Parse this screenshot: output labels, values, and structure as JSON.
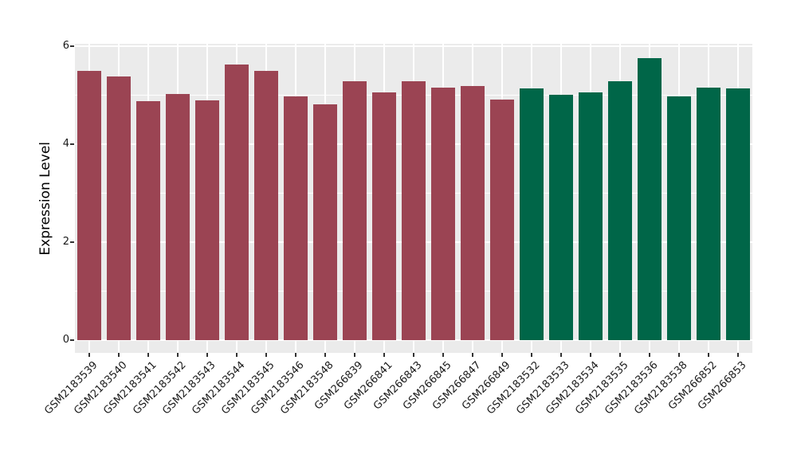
{
  "chart_data": {
    "type": "bar",
    "title": "",
    "xlabel": "",
    "ylabel": "Expression Level",
    "ylim": [
      0,
      6
    ],
    "yticks_major": [
      0,
      2,
      4,
      6
    ],
    "yticks_minor": [
      1,
      3,
      5
    ],
    "grid": "white-on-gray",
    "legend": "none",
    "panel_bg": "#EBEBEB",
    "grid_color": "#FFFFFF",
    "tick_color": "#333333",
    "bar_colors": {
      "group1": "#9B4453",
      "group2": "#006648"
    },
    "categories": [
      "GSM2183539",
      "GSM2183540",
      "GSM2183541",
      "GSM2183542",
      "GSM2183543",
      "GSM2183544",
      "GSM2183545",
      "GSM2183546",
      "GSM2183548",
      "GSM266839",
      "GSM266841",
      "GSM266843",
      "GSM266845",
      "GSM266847",
      "GSM266849",
      "GSM2183532",
      "GSM2183533",
      "GSM2183534",
      "GSM2183535",
      "GSM2183536",
      "GSM2183538",
      "GSM266852",
      "GSM266853"
    ],
    "values": [
      5.49,
      5.39,
      4.88,
      5.03,
      4.9,
      5.63,
      5.49,
      4.97,
      4.82,
      5.28,
      5.05,
      5.28,
      5.15,
      5.19,
      4.91,
      5.14,
      5.01,
      5.06,
      5.29,
      5.75,
      4.98,
      5.16,
      5.14
    ],
    "groups": [
      "group1",
      "group1",
      "group1",
      "group1",
      "group1",
      "group1",
      "group1",
      "group1",
      "group1",
      "group1",
      "group1",
      "group1",
      "group1",
      "group1",
      "group1",
      "group2",
      "group2",
      "group2",
      "group2",
      "group2",
      "group2",
      "group2",
      "group2"
    ]
  }
}
